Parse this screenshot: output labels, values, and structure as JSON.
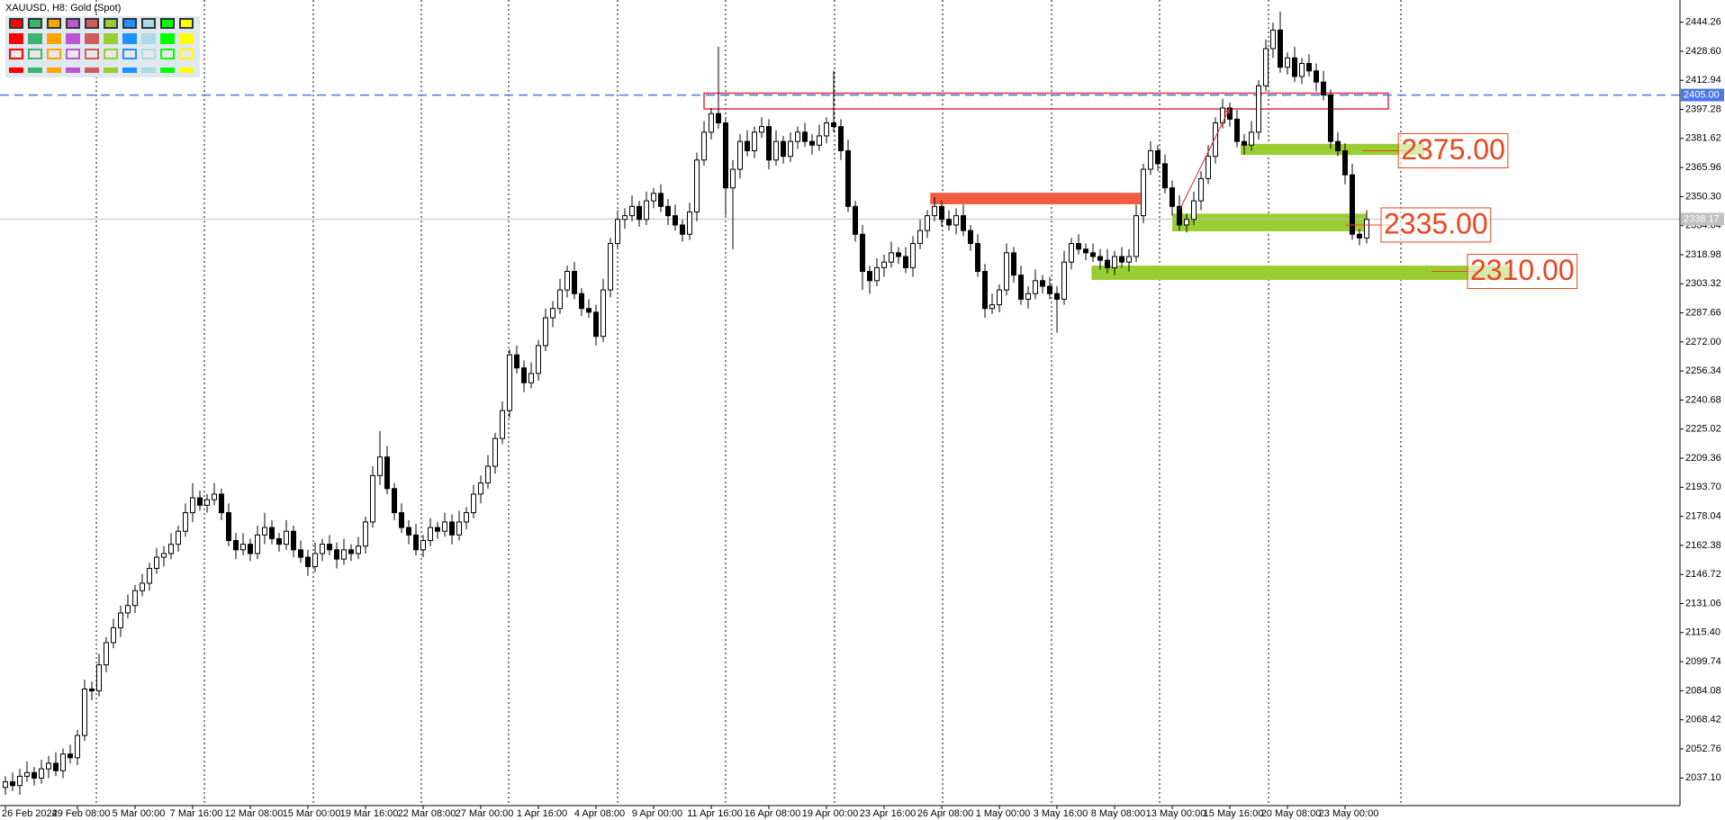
{
  "chart_data": {
    "type": "candlestick",
    "title": "XAUUSD, H8:  Gold (Spot)",
    "categories": [
      "26 Feb 2024",
      null,
      null,
      null,
      null,
      null,
      null,
      null,
      null,
      null,
      "29 Feb 08:00",
      null,
      null,
      null,
      null,
      null,
      null,
      null,
      "5 Mar 00:00",
      null,
      null,
      null,
      null,
      null,
      null,
      null,
      "7 Mar 16:00",
      null,
      null,
      null,
      null,
      null,
      null,
      null,
      "12 Mar 08:00",
      null,
      null,
      null,
      null,
      null,
      null,
      null,
      "15 Mar 00:00",
      null,
      null,
      null,
      null,
      null,
      null,
      null,
      "19 Mar 16:00",
      null,
      null,
      null,
      null,
      null,
      null,
      null,
      "22 Mar 08:00",
      null,
      null,
      null,
      null,
      null,
      null,
      null,
      "27 Mar 00:00",
      null,
      null,
      null,
      null,
      null,
      null,
      null,
      "1 Apr 16:00",
      null,
      null,
      null,
      null,
      null,
      null,
      null,
      "4 Apr 08:00",
      null,
      null,
      null,
      null,
      null,
      null,
      null,
      "9 Apr 00:00",
      null,
      null,
      null,
      null,
      null,
      null,
      null,
      "11 Apr 16:00",
      null,
      null,
      null,
      null,
      null,
      null,
      null,
      "16 Apr 08:00",
      null,
      null,
      null,
      null,
      null,
      null,
      null,
      "19 Apr 00:00",
      null,
      null,
      null,
      null,
      null,
      null,
      null,
      "23 Apr 16:00",
      null,
      null,
      null,
      null,
      null,
      null,
      null,
      "26 Apr 08:00",
      null,
      null,
      null,
      null,
      null,
      null,
      null,
      "1 May 00:00",
      null,
      null,
      null,
      null,
      null,
      null,
      null,
      "3 May 16:00",
      null,
      null,
      null,
      null,
      null,
      null,
      null,
      "8 May 08:00",
      null,
      null,
      null,
      null,
      null,
      null,
      null,
      "13 May 00:00",
      null,
      null,
      null,
      null,
      null,
      null,
      null,
      "15 May 16:00",
      null,
      null,
      null,
      null,
      null,
      null,
      null,
      "20 May 08:00",
      null,
      null,
      null,
      null,
      null,
      null,
      null,
      "23 May 00:00",
      null,
      null,
      null
    ],
    "open": [
      2032,
      2035,
      2033,
      2038,
      2040,
      2037,
      2042,
      2045,
      2041,
      2050,
      2048,
      2060,
      2085,
      2084,
      2098,
      2110,
      2118,
      2126,
      2130,
      2138,
      2142,
      2150,
      2156,
      2158,
      2163,
      2170,
      2180,
      2188,
      2184,
      2187,
      2190,
      2180,
      2165,
      2160,
      2163,
      2158,
      2168,
      2172,
      2166,
      2163,
      2170,
      2160,
      2156,
      2151,
      2158,
      2163,
      2160,
      2155,
      2160,
      2158,
      2162,
      2175,
      2200,
      2210,
      2193,
      2180,
      2172,
      2168,
      2160,
      2165,
      2172,
      2170,
      2175,
      2168,
      2175,
      2180,
      2190,
      2196,
      2205,
      2220,
      2235,
      2265,
      2258,
      2250,
      2255,
      2270,
      2285,
      2290,
      2300,
      2310,
      2298,
      2290,
      2288,
      2275,
      2300,
      2325,
      2338,
      2340,
      2345,
      2338,
      2348,
      2352,
      2345,
      2340,
      2335,
      2330,
      2342,
      2370,
      2385,
      2395,
      2390,
      2355,
      2365,
      2380,
      2375,
      2385,
      2388,
      2370,
      2380,
      2372,
      2380,
      2385,
      2380,
      2378,
      2383,
      2390,
      2388,
      2375,
      2345,
      2330,
      2310,
      2305,
      2312,
      2315,
      2320,
      2318,
      2312,
      2325,
      2332,
      2340,
      2345,
      2338,
      2335,
      2340,
      2332,
      2325,
      2310,
      2290,
      2292,
      2300,
      2320,
      2308,
      2295,
      2298,
      2305,
      2302,
      2298,
      2295,
      2315,
      2325,
      2322,
      2320,
      2318,
      2316,
      2312,
      2318,
      2315,
      2318,
      2340,
      2365,
      2375,
      2368,
      2355,
      2345,
      2335,
      2338,
      2348,
      2360,
      2372,
      2390,
      2398,
      2392,
      2380,
      2378,
      2385,
      2410,
      2430,
      2440,
      2420,
      2425,
      2415,
      2422,
      2418,
      2412,
      2405,
      2380,
      2375,
      2362,
      2330,
      2328
    ],
    "high": [
      2038,
      2040,
      2042,
      2046,
      2043,
      2047,
      2049,
      2051,
      2053,
      2055,
      2063,
      2090,
      2089,
      2104,
      2113,
      2123,
      2130,
      2136,
      2141,
      2147,
      2153,
      2161,
      2162,
      2169,
      2173,
      2185,
      2196,
      2192,
      2190,
      2196,
      2193,
      2185,
      2169,
      2169,
      2166,
      2173,
      2180,
      2176,
      2169,
      2176,
      2173,
      2165,
      2160,
      2164,
      2166,
      2168,
      2164,
      2166,
      2163,
      2167,
      2178,
      2205,
      2224,
      2216,
      2196,
      2185,
      2176,
      2174,
      2168,
      2177,
      2175,
      2180,
      2179,
      2181,
      2183,
      2195,
      2200,
      2211,
      2223,
      2240,
      2268,
      2270,
      2262,
      2261,
      2273,
      2290,
      2294,
      2306,
      2313,
      2315,
      2301,
      2295,
      2292,
      2306,
      2328,
      2343,
      2344,
      2351,
      2348,
      2353,
      2355,
      2357,
      2349,
      2346,
      2338,
      2347,
      2374,
      2391,
      2398,
      2431,
      2393,
      2370,
      2384,
      2386,
      2388,
      2393,
      2392,
      2386,
      2383,
      2385,
      2388,
      2390,
      2384,
      2389,
      2393,
      2418,
      2392,
      2381,
      2348,
      2335,
      2313,
      2317,
      2319,
      2326,
      2323,
      2323,
      2329,
      2338,
      2343,
      2350,
      2348,
      2343,
      2344,
      2346,
      2335,
      2330,
      2314,
      2298,
      2303,
      2325,
      2323,
      2313,
      2302,
      2311,
      2308,
      2307,
      2302,
      2321,
      2328,
      2330,
      2325,
      2325,
      2322,
      2322,
      2321,
      2323,
      2322,
      2346,
      2368,
      2380,
      2378,
      2373,
      2359,
      2351,
      2341,
      2353,
      2364,
      2378,
      2393,
      2403,
      2401,
      2397,
      2384,
      2391,
      2413,
      2435,
      2444,
      2450,
      2428,
      2431,
      2425,
      2427,
      2422,
      2418,
      2408,
      2385,
      2379,
      2368,
      2333,
      2343
    ],
    "low": [
      2028,
      2030,
      2028,
      2035,
      2033,
      2034,
      2037,
      2038,
      2037,
      2045,
      2044,
      2057,
      2079,
      2081,
      2094,
      2107,
      2113,
      2123,
      2126,
      2135,
      2138,
      2147,
      2151,
      2155,
      2159,
      2167,
      2175,
      2181,
      2180,
      2184,
      2176,
      2162,
      2155,
      2157,
      2154,
      2155,
      2163,
      2163,
      2159,
      2160,
      2156,
      2153,
      2146,
      2148,
      2154,
      2157,
      2150,
      2152,
      2154,
      2155,
      2158,
      2172,
      2195,
      2190,
      2176,
      2169,
      2163,
      2157,
      2156,
      2162,
      2166,
      2167,
      2163,
      2165,
      2171,
      2177,
      2185,
      2193,
      2201,
      2217,
      2231,
      2255,
      2245,
      2247,
      2251,
      2267,
      2280,
      2287,
      2296,
      2295,
      2286,
      2285,
      2270,
      2272,
      2296,
      2322,
      2333,
      2337,
      2334,
      2335,
      2344,
      2342,
      2335,
      2332,
      2326,
      2327,
      2337,
      2367,
      2381,
      2387,
      2340,
      2322,
      2360,
      2372,
      2371,
      2382,
      2365,
      2367,
      2368,
      2369,
      2376,
      2377,
      2373,
      2375,
      2379,
      2385,
      2370,
      2342,
      2326,
      2300,
      2298,
      2302,
      2307,
      2312,
      2314,
      2309,
      2307,
      2322,
      2328,
      2337,
      2334,
      2332,
      2330,
      2329,
      2321,
      2307,
      2285,
      2287,
      2288,
      2297,
      2304,
      2292,
      2290,
      2295,
      2298,
      2295,
      2277,
      2292,
      2311,
      2319,
      2316,
      2315,
      2311,
      2309,
      2308,
      2312,
      2310,
      2315,
      2336,
      2362,
      2364,
      2352,
      2340,
      2332,
      2331,
      2335,
      2343,
      2357,
      2368,
      2387,
      2388,
      2377,
      2373,
      2375,
      2381,
      2407,
      2425,
      2417,
      2416,
      2412,
      2411,
      2415,
      2407,
      2402,
      2376,
      2372,
      2357,
      2327,
      2324,
      2325
    ],
    "close": [
      2035,
      2033,
      2038,
      2040,
      2037,
      2042,
      2045,
      2041,
      2050,
      2048,
      2060,
      2085,
      2084,
      2098,
      2110,
      2118,
      2126,
      2130,
      2138,
      2142,
      2150,
      2156,
      2158,
      2163,
      2170,
      2180,
      2188,
      2184,
      2187,
      2190,
      2180,
      2165,
      2160,
      2163,
      2158,
      2168,
      2172,
      2166,
      2163,
      2170,
      2160,
      2156,
      2151,
      2158,
      2163,
      2160,
      2155,
      2160,
      2158,
      2162,
      2175,
      2200,
      2210,
      2193,
      2180,
      2172,
      2168,
      2160,
      2165,
      2172,
      2170,
      2175,
      2168,
      2175,
      2180,
      2190,
      2196,
      2205,
      2220,
      2235,
      2265,
      2258,
      2250,
      2255,
      2270,
      2285,
      2290,
      2300,
      2310,
      2298,
      2290,
      2288,
      2275,
      2300,
      2325,
      2338,
      2340,
      2345,
      2338,
      2348,
      2352,
      2345,
      2340,
      2335,
      2330,
      2342,
      2370,
      2385,
      2395,
      2390,
      2355,
      2365,
      2380,
      2375,
      2385,
      2388,
      2370,
      2380,
      2372,
      2380,
      2385,
      2380,
      2378,
      2383,
      2390,
      2388,
      2375,
      2345,
      2330,
      2310,
      2305,
      2312,
      2315,
      2320,
      2318,
      2312,
      2325,
      2332,
      2340,
      2345,
      2338,
      2335,
      2340,
      2332,
      2325,
      2310,
      2290,
      2292,
      2300,
      2320,
      2308,
      2295,
      2298,
      2305,
      2302,
      2298,
      2295,
      2315,
      2325,
      2322,
      2320,
      2318,
      2316,
      2312,
      2318,
      2315,
      2318,
      2340,
      2365,
      2375,
      2368,
      2355,
      2345,
      2335,
      2338,
      2348,
      2360,
      2372,
      2390,
      2398,
      2392,
      2380,
      2378,
      2385,
      2410,
      2430,
      2440,
      2420,
      2425,
      2415,
      2422,
      2418,
      2412,
      2405,
      2380,
      2375,
      2362,
      2330,
      2328,
      2338
    ],
    "ylim": [
      2022.2,
      2456.2
    ],
    "yticks": [
      2444.26,
      {
        "value": 2428.6,
        "label": "2428.60"
      },
      2412.94,
      2397.28,
      2381.62,
      2365.96,
      {
        "value": 2350.3,
        "label": "2350.30"
      },
      2334.64,
      2318.98,
      2303.32,
      2287.66,
      {
        "value": 2272,
        "label": "2272.00"
      },
      2256.34,
      2240.68,
      2225.02,
      2209.36,
      {
        "value": 2193.7,
        "label": "2193.70"
      },
      2178.04,
      2162.38,
      2146.72,
      2131.06,
      {
        "value": 2115.4,
        "label": "2115.40"
      },
      2099.74,
      2084.08,
      2068.42,
      2052.76,
      {
        "value": 2037.1,
        "label": "2037.10"
      }
    ],
    "bull_color": "#ffffff",
    "bear_color": "#000000",
    "horizontal_line": {
      "value": 2405,
      "label": "2405.00",
      "color": "#4a78e8"
    },
    "current_price": 2338.17,
    "zones": [
      {
        "x": [
          97,
          192
        ],
        "y": [
          2397.5,
          2406
        ],
        "color": "#e0303a",
        "filled": false
      },
      {
        "x": [
          128.5,
          157.5
        ],
        "y": [
          2346.5,
          2352
        ],
        "color": "#f45c42",
        "filled": true
      }
    ],
    "targets": [
      {
        "x": [
          171.5,
          197
        ],
        "y": [
          2372.7,
          2378.7
        ],
        "color": "#9acd32",
        "label_at": 193.4,
        "level": {
          "value": 2375,
          "label": "2375.00"
        }
      },
      {
        "x": [
          162,
          189
        ],
        "y": [
          2331.6,
          2341.1
        ],
        "color": "#9acd32",
        "label_at": 191,
        "level": {
          "value": 2335,
          "label": "2335.00"
        }
      },
      {
        "x": [
          150.8,
          209
        ],
        "y": [
          2305.4,
          2313.1
        ],
        "color": "#9acd32",
        "label_at": 203,
        "level": {
          "value": 2310,
          "label": "2310.00"
        }
      }
    ],
    "label_color": "#e8461e",
    "arrow": {
      "from": [
        163,
        2343
      ],
      "to": [
        170,
        2398
      ],
      "color": "#e02020"
    }
  }
}
